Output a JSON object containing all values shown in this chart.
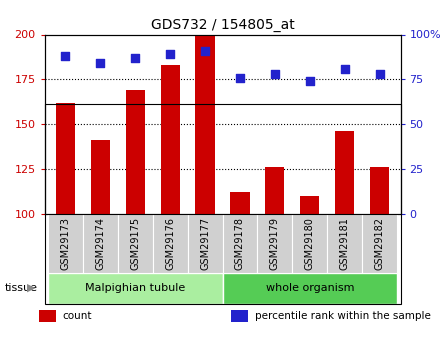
{
  "title": "GDS732 / 154805_at",
  "categories": [
    "GSM29173",
    "GSM29174",
    "GSM29175",
    "GSM29176",
    "GSM29177",
    "GSM29178",
    "GSM29179",
    "GSM29180",
    "GSM29181",
    "GSM29182"
  ],
  "counts": [
    162,
    141,
    169,
    183,
    200,
    112,
    126,
    110,
    146,
    126
  ],
  "percentiles": [
    88,
    84,
    87,
    89,
    91,
    76,
    78,
    74,
    81,
    78
  ],
  "ylim_left": [
    100,
    200
  ],
  "ylim_right": [
    0,
    100
  ],
  "yticks_left": [
    100,
    125,
    150,
    175,
    200
  ],
  "yticks_right": [
    0,
    25,
    50,
    75,
    100
  ],
  "bar_color": "#cc0000",
  "dot_color": "#2222cc",
  "bar_bottom": 100,
  "tissue_groups": [
    {
      "label": "Malpighian tubule",
      "start": 0,
      "end": 5,
      "color": "#aaeea0"
    },
    {
      "label": "whole organism",
      "start": 5,
      "end": 10,
      "color": "#55cc55"
    }
  ],
  "tissue_label": "tissue",
  "legend_items": [
    {
      "label": "count",
      "color": "#cc0000"
    },
    {
      "label": "percentile rank within the sample",
      "color": "#2222cc"
    }
  ],
  "grid_linestyle": ":",
  "grid_linewidth": 0.8,
  "tick_label_color_left": "#cc0000",
  "tick_label_color_right": "#2222cc",
  "xlabel_gray": "#c8c8c8",
  "bar_width": 0.55,
  "dot_size": 28
}
